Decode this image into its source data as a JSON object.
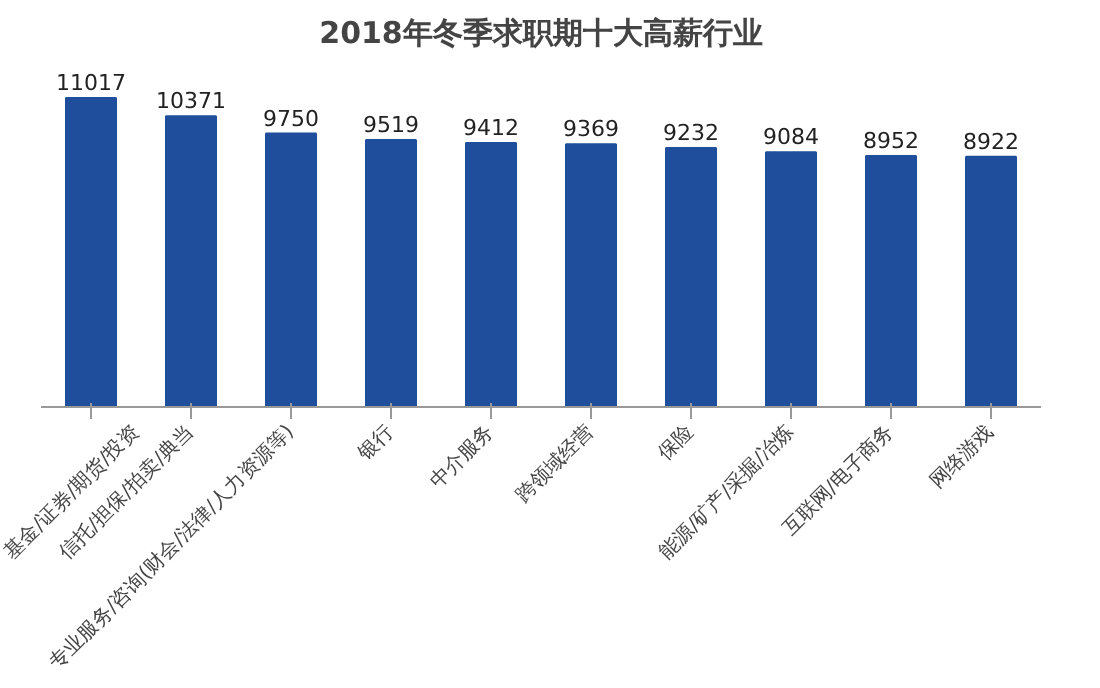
{
  "chart_data": {
    "type": "bar",
    "title": "2018年冬季求职期十大高薪行业",
    "categories": [
      "基金/证券/期货/投资",
      "信托/担保/拍卖/典当",
      "专业服务/咨询(财会/法律/人力资源等)",
      "银行",
      "中介服务",
      "跨领域经营",
      "保险",
      "能源/矿产/采掘/冶炼",
      "互联网/电子商务",
      "网络游戏"
    ],
    "values": [
      11017,
      10371,
      9750,
      9519,
      9412,
      9369,
      9232,
      9084,
      8952,
      8922
    ],
    "color": "#1f4e9c",
    "data_labels": true,
    "tick_labels": "x"
  }
}
